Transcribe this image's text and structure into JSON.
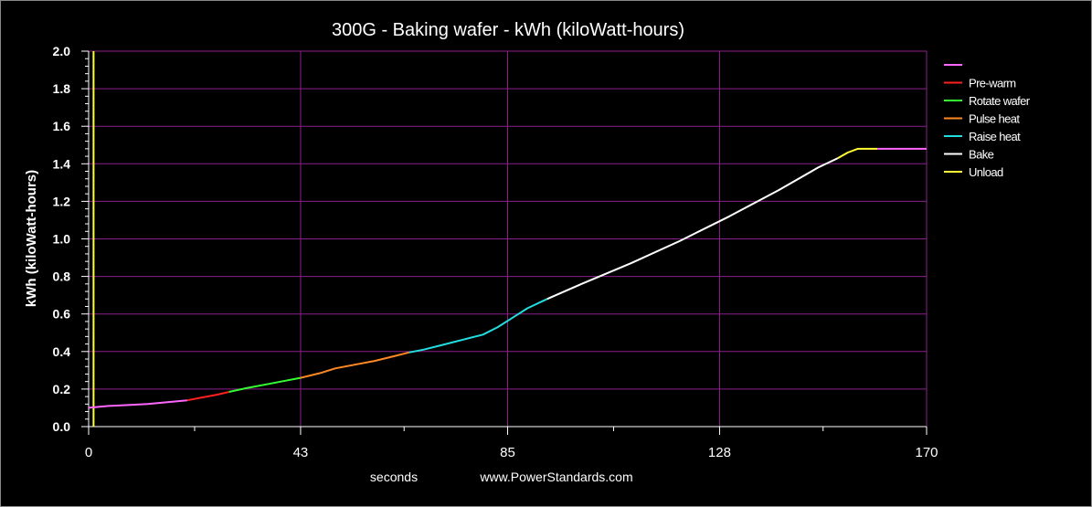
{
  "chart_data": {
    "type": "line",
    "title": "300G - Baking wafer - kWh (kiloWatt-hours)",
    "xlabel": "seconds",
    "source_text": "www.PowerStandards.com",
    "ylabel": "kWh (kiloWatt-hours)",
    "xlim": [
      0,
      170
    ],
    "ylim": [
      0,
      2.0
    ],
    "x_ticks": [
      0,
      43,
      85,
      128,
      170
    ],
    "y_ticks": [
      0.0,
      0.2,
      0.4,
      0.6,
      0.8,
      1.0,
      1.2,
      1.4,
      1.6,
      1.8,
      2.0
    ],
    "y_tick_labels": [
      "0.0",
      "0.2",
      "0.4",
      "0.6",
      "0.8",
      "1.0",
      "1.2",
      "1.4",
      "1.6",
      "1.8",
      "2.0"
    ],
    "grid": true,
    "legend_position": "right",
    "marker": {
      "x": 1,
      "color": "#ffff33"
    },
    "series": [
      {
        "name": "",
        "color": "#ff66ff",
        "points": [
          [
            0,
            0.1
          ],
          [
            4,
            0.11
          ],
          [
            8,
            0.115
          ],
          [
            12,
            0.12
          ],
          [
            16,
            0.13
          ],
          [
            18,
            0.135
          ],
          [
            20,
            0.14
          ],
          [
            155,
            1.48
          ],
          [
            170,
            1.48
          ]
        ],
        "segments": [
          [
            0,
            20
          ]
        ]
      },
      {
        "name": "Pre-warm",
        "color": "#ff2020",
        "points": [
          [
            20,
            0.14
          ],
          [
            23,
            0.155
          ],
          [
            26,
            0.17
          ],
          [
            28.5,
            0.185
          ]
        ]
      },
      {
        "name": "Rotate wafer",
        "color": "#33ff33",
        "points": [
          [
            28.5,
            0.185
          ],
          [
            32,
            0.205
          ],
          [
            36,
            0.225
          ],
          [
            40,
            0.245
          ],
          [
            43,
            0.26
          ]
        ]
      },
      {
        "name": "Pulse heat",
        "color": "#ff8822",
        "points": [
          [
            43,
            0.26
          ],
          [
            47,
            0.285
          ],
          [
            50,
            0.31
          ],
          [
            54,
            0.33
          ],
          [
            58,
            0.35
          ],
          [
            62,
            0.375
          ],
          [
            65,
            0.395
          ]
        ]
      },
      {
        "name": "Raise heat",
        "color": "#22dddd",
        "points": [
          [
            65,
            0.395
          ],
          [
            68,
            0.41
          ],
          [
            71,
            0.43
          ],
          [
            74,
            0.45
          ],
          [
            77,
            0.47
          ],
          [
            80,
            0.49
          ],
          [
            83,
            0.53
          ],
          [
            86,
            0.58
          ],
          [
            89,
            0.63
          ],
          [
            93,
            0.68
          ]
        ]
      },
      {
        "name": "Bake",
        "color": "#ffffff",
        "points": [
          [
            93,
            0.68
          ],
          [
            100,
            0.76
          ],
          [
            110,
            0.87
          ],
          [
            120,
            0.99
          ],
          [
            130,
            1.12
          ],
          [
            140,
            1.26
          ],
          [
            148,
            1.38
          ],
          [
            152,
            1.43
          ]
        ]
      },
      {
        "name": "Unload",
        "color": "#ffff33",
        "points": [
          [
            152,
            1.43
          ],
          [
            154,
            1.46
          ],
          [
            156,
            1.48
          ],
          [
            160,
            1.48
          ]
        ]
      }
    ],
    "tail": {
      "color": "#ff66ff",
      "points": [
        [
          160,
          1.48
        ],
        [
          170,
          1.48
        ]
      ]
    }
  }
}
